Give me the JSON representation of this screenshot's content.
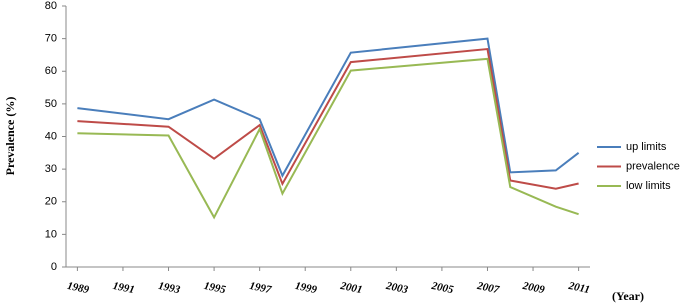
{
  "chart_data": {
    "type": "line",
    "y_label": "Prevalence (%)",
    "x_label": "(Year)",
    "x": [
      1989,
      1993,
      1995,
      1997,
      1998,
      2001,
      2007,
      2008,
      2010,
      2011
    ],
    "xlim": [
      1988.5,
      2011.5
    ],
    "xticks": [
      1989,
      1991,
      1993,
      1995,
      1997,
      1999,
      2001,
      2003,
      2005,
      2007,
      2009,
      2011
    ],
    "ylim": [
      0,
      80
    ],
    "yticks": [
      0,
      10,
      20,
      30,
      40,
      50,
      60,
      70,
      80
    ],
    "grid": false,
    "legend": "right",
    "series": [
      {
        "name": "up limits",
        "color": "#4a7ebb",
        "values": [
          48.7,
          45.3,
          51.3,
          45.3,
          28,
          65.7,
          70,
          29,
          29.6,
          35
        ]
      },
      {
        "name": "prevalence",
        "color": "#be4b48",
        "values": [
          44.7,
          43,
          33.2,
          43.5,
          25.5,
          62.8,
          66.8,
          26.5,
          24,
          25.6
        ]
      },
      {
        "name": "low limits",
        "color": "#98b954",
        "values": [
          41,
          40.3,
          15.2,
          42.3,
          22.5,
          60.2,
          63.8,
          24.5,
          18.5,
          16.2
        ]
      }
    ]
  }
}
